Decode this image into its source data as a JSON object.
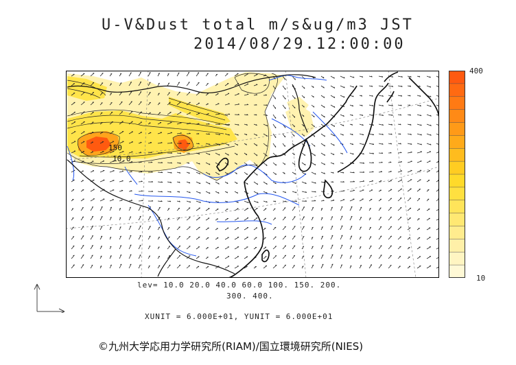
{
  "title": {
    "line1": "U-V&Dust total m/s&ug/m3 JST",
    "line2": "2014/08/29.12:00:00"
  },
  "colorbar": {
    "max_label": "400",
    "min_label": "10",
    "colors": [
      "#fff9d6",
      "#fff5c2",
      "#fff0a8",
      "#ffec8e",
      "#ffe873",
      "#ffe45a",
      "#ffe040",
      "#ffda2a",
      "#ffcc22",
      "#ffbc1e",
      "#ffaa1a",
      "#ff9a18",
      "#ff8a16",
      "#ff7a14",
      "#ff6a12",
      "#ff5a10"
    ]
  },
  "contour_labels": {
    "label_a": "150",
    "label_b": "10.0"
  },
  "levels": {
    "line1": "lev= 10.0 20.0 40.0 60.0 100. 150. 200.",
    "line2": "300. 400."
  },
  "units": "XUNIT = 6.000E+01, YUNIT = 6.000E+01",
  "copyright": "©九州大学応用力学研究所(RIAM)/国立環境研究所(NIES)",
  "map_colors": {
    "coast": "#111111",
    "rivers": "#2255ee",
    "grid": "#777777"
  }
}
